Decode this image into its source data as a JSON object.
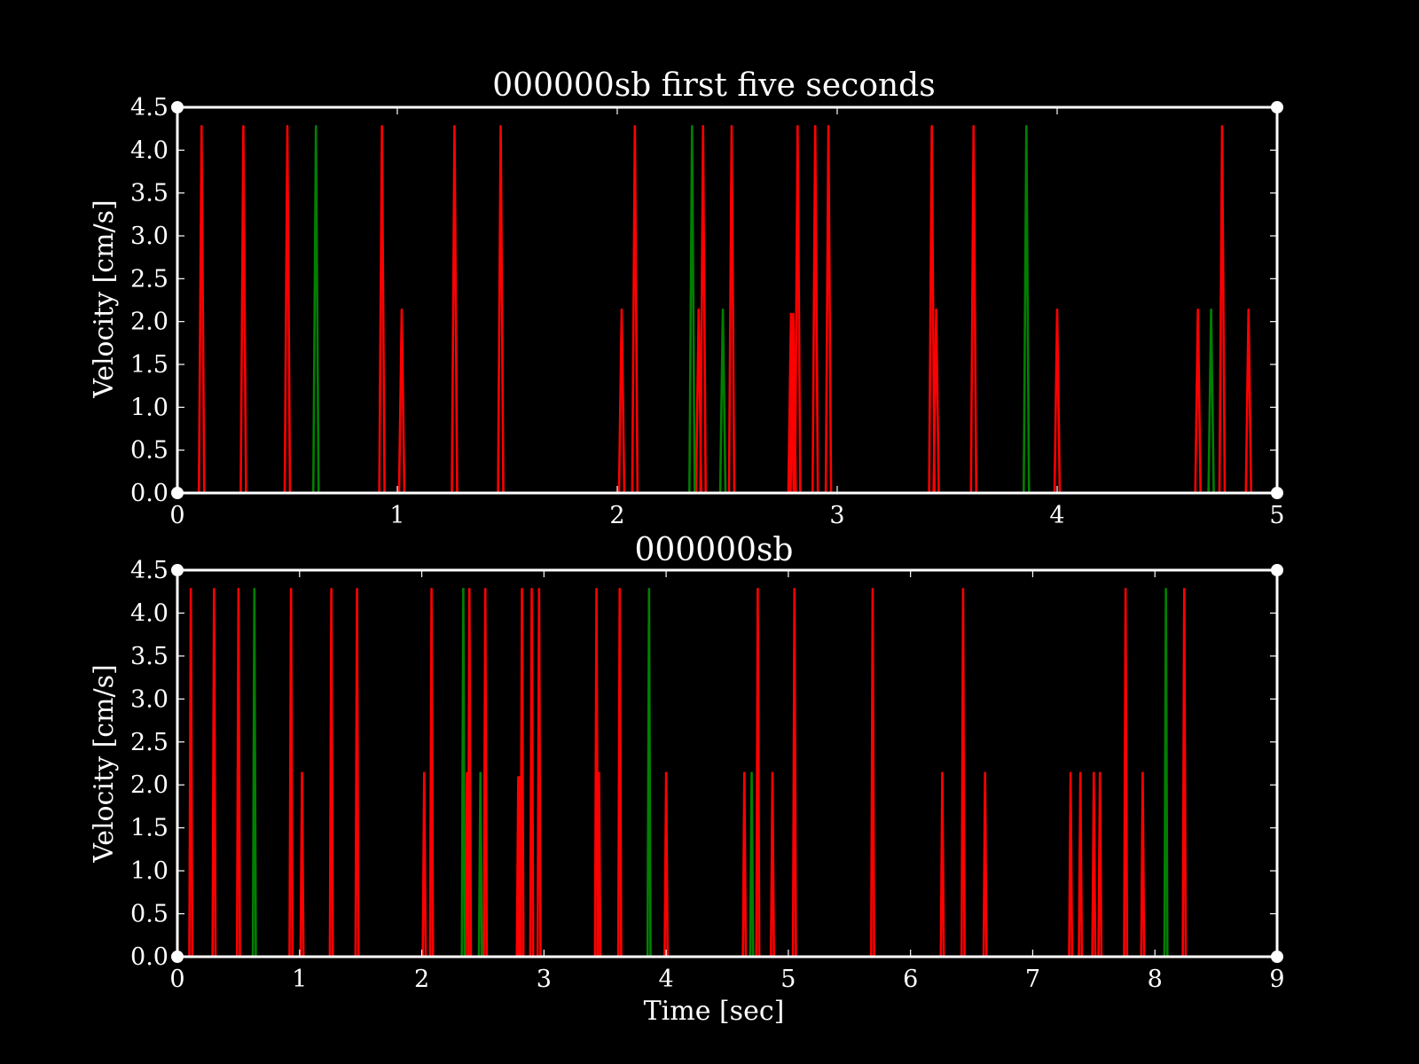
{
  "chart_data": [
    {
      "type": "line",
      "title": "000000sb first five seconds",
      "xlabel": "",
      "ylabel": "Velocity [cm/s]",
      "xlim": [
        0,
        5
      ],
      "ylim": [
        0,
        4.5
      ],
      "xticks": [
        "0",
        "1",
        "2",
        "3",
        "4",
        "5"
      ],
      "yticks": [
        "0.0",
        "0.5",
        "1.0",
        "1.5",
        "2.0",
        "2.5",
        "3.0",
        "3.5",
        "4.0",
        "4.5"
      ],
      "grid": false,
      "series": [
        {
          "color": "#ff0000",
          "spikes": [
            {
              "t": 0.11,
              "v": 4.28
            },
            {
              "t": 0.3,
              "v": 4.28
            },
            {
              "t": 0.5,
              "v": 4.28
            },
            {
              "t": 0.93,
              "v": 4.28
            },
            {
              "t": 1.02,
              "v": 2.14
            },
            {
              "t": 1.26,
              "v": 4.28
            },
            {
              "t": 1.47,
              "v": 4.28
            },
            {
              "t": 2.02,
              "v": 2.14
            },
            {
              "t": 2.08,
              "v": 4.28
            },
            {
              "t": 2.37,
              "v": 2.14
            },
            {
              "t": 2.39,
              "v": 4.28
            },
            {
              "t": 2.52,
              "v": 4.28
            },
            {
              "t": 2.79,
              "v": 2.09
            },
            {
              "t": 2.8,
              "v": 2.09
            },
            {
              "t": 2.82,
              "v": 4.28
            },
            {
              "t": 2.9,
              "v": 4.28
            },
            {
              "t": 2.96,
              "v": 4.28
            },
            {
              "t": 3.43,
              "v": 4.28
            },
            {
              "t": 3.45,
              "v": 2.14
            },
            {
              "t": 3.62,
              "v": 4.28
            },
            {
              "t": 4.0,
              "v": 2.14
            },
            {
              "t": 4.64,
              "v": 2.14
            },
            {
              "t": 4.75,
              "v": 4.28
            },
            {
              "t": 4.87,
              "v": 2.14
            }
          ]
        },
        {
          "color": "#008000",
          "spikes": [
            {
              "t": 0.63,
              "v": 4.28
            },
            {
              "t": 2.34,
              "v": 4.28
            },
            {
              "t": 2.48,
              "v": 2.14
            },
            {
              "t": 3.86,
              "v": 4.28
            },
            {
              "t": 4.7,
              "v": 2.14
            }
          ]
        }
      ]
    },
    {
      "type": "line",
      "title": "000000sb",
      "xlabel": "Time [sec]",
      "ylabel": "Velocity [cm/s]",
      "xlim": [
        0,
        9
      ],
      "ylim": [
        0,
        4.5
      ],
      "xticks": [
        "0",
        "1",
        "2",
        "3",
        "4",
        "5",
        "6",
        "7",
        "8",
        "9"
      ],
      "yticks": [
        "0.0",
        "0.5",
        "1.0",
        "1.5",
        "2.0",
        "2.5",
        "3.0",
        "3.5",
        "4.0",
        "4.5"
      ],
      "grid": false,
      "series": [
        {
          "color": "#ff0000",
          "spikes": [
            {
              "t": 0.11,
              "v": 4.28
            },
            {
              "t": 0.3,
              "v": 4.28
            },
            {
              "t": 0.5,
              "v": 4.28
            },
            {
              "t": 0.93,
              "v": 4.28
            },
            {
              "t": 1.02,
              "v": 2.14
            },
            {
              "t": 1.26,
              "v": 4.28
            },
            {
              "t": 1.47,
              "v": 4.28
            },
            {
              "t": 2.02,
              "v": 2.14
            },
            {
              "t": 2.08,
              "v": 4.28
            },
            {
              "t": 2.37,
              "v": 2.14
            },
            {
              "t": 2.39,
              "v": 4.28
            },
            {
              "t": 2.52,
              "v": 4.28
            },
            {
              "t": 2.79,
              "v": 2.09
            },
            {
              "t": 2.8,
              "v": 2.09
            },
            {
              "t": 2.82,
              "v": 4.28
            },
            {
              "t": 2.9,
              "v": 4.28
            },
            {
              "t": 2.96,
              "v": 4.28
            },
            {
              "t": 3.43,
              "v": 4.28
            },
            {
              "t": 3.45,
              "v": 2.14
            },
            {
              "t": 3.62,
              "v": 4.28
            },
            {
              "t": 4.0,
              "v": 2.14
            },
            {
              "t": 4.64,
              "v": 2.14
            },
            {
              "t": 4.75,
              "v": 4.28
            },
            {
              "t": 4.87,
              "v": 2.14
            },
            {
              "t": 5.05,
              "v": 4.28
            },
            {
              "t": 5.69,
              "v": 4.28
            },
            {
              "t": 6.26,
              "v": 2.14
            },
            {
              "t": 6.43,
              "v": 4.28
            },
            {
              "t": 6.61,
              "v": 2.14
            },
            {
              "t": 7.31,
              "v": 2.14
            },
            {
              "t": 7.39,
              "v": 2.14
            },
            {
              "t": 7.5,
              "v": 2.14
            },
            {
              "t": 7.55,
              "v": 2.14
            },
            {
              "t": 7.76,
              "v": 4.28
            },
            {
              "t": 7.9,
              "v": 2.14
            },
            {
              "t": 8.24,
              "v": 4.28
            }
          ]
        },
        {
          "color": "#008000",
          "spikes": [
            {
              "t": 0.63,
              "v": 4.28
            },
            {
              "t": 2.34,
              "v": 4.28
            },
            {
              "t": 2.48,
              "v": 2.14
            },
            {
              "t": 3.86,
              "v": 4.28
            },
            {
              "t": 4.7,
              "v": 2.14
            },
            {
              "t": 8.09,
              "v": 4.28
            }
          ]
        }
      ]
    }
  ]
}
